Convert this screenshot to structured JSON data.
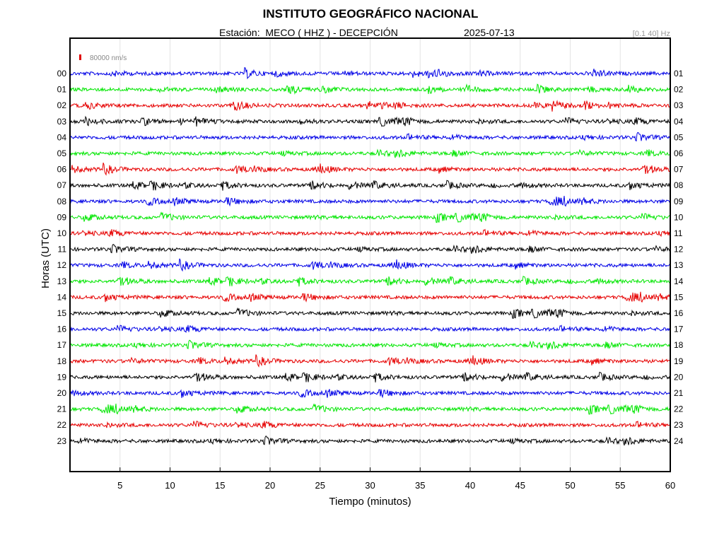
{
  "header": {
    "title": "INSTITUTO GEOGRÁFICO NACIONAL",
    "station": "Estación:  MECO ( HHZ ) - DECEPCIÓN",
    "date": "2025-07-13",
    "filter": "[0.1 40] Hz"
  },
  "chart_data": {
    "type": "line",
    "xlabel": "Tiempo (minutos)",
    "ylabel": "Horas (UTC)",
    "xlim": [
      0,
      60
    ],
    "x_ticks": [
      "5",
      "10",
      "15",
      "20",
      "25",
      "30",
      "35",
      "40",
      "45",
      "50",
      "55",
      "60"
    ],
    "grid": "vertical",
    "scale_bar": "80000 nm/s",
    "scale_bar_color": "#e00000",
    "trace_colors": [
      "#0000e6",
      "#00e600",
      "#e60000",
      "#000000"
    ],
    "left_labels": [
      "00",
      "01",
      "02",
      "03",
      "04",
      "05",
      "06",
      "07",
      "08",
      "09",
      "10",
      "11",
      "12",
      "13",
      "14",
      "15",
      "16",
      "17",
      "18",
      "19",
      "20",
      "21",
      "22",
      "23"
    ],
    "right_labels": [
      "01",
      "02",
      "03",
      "04",
      "05",
      "06",
      "07",
      "08",
      "09",
      "10",
      "11",
      "12",
      "13",
      "14",
      "15",
      "16",
      "17",
      "18",
      "19",
      "20",
      "21",
      "22",
      "23",
      "24"
    ]
  }
}
